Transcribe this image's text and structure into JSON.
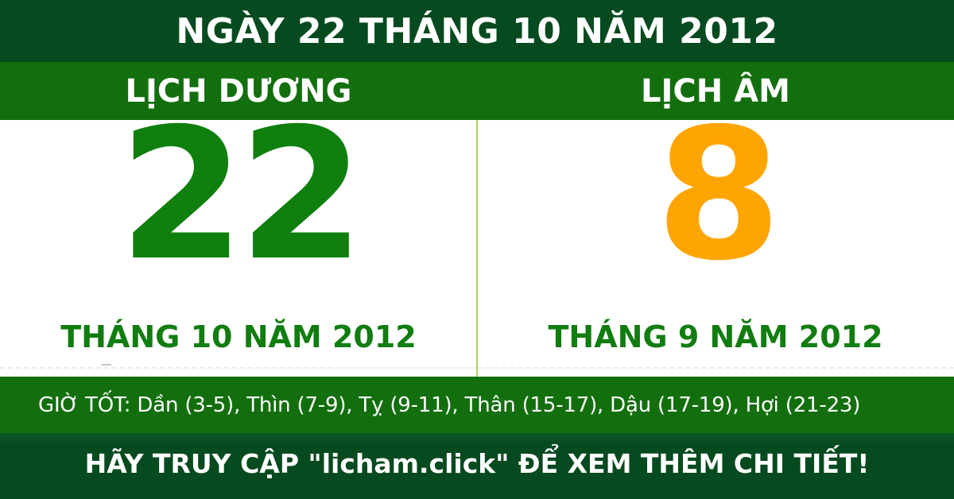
{
  "header": {
    "title": "NGÀY 22 THÁNG 10 NĂM 2012"
  },
  "columns": {
    "solar": {
      "header": "LỊCH DƯƠNG",
      "day": "22",
      "month": "THÁNG 10 NĂM 2012"
    },
    "lunar": {
      "header": "LỊCH ÂM",
      "day": "8",
      "month": "THÁNG 9 NĂM 2012"
    }
  },
  "good_hours": {
    "text": "GIỜ TỐT: Dần (3-5), Thìn (7-9), Tỵ (9-11), Thân (15-17), Dậu (17-19), Hợi (21-23)"
  },
  "footer": {
    "text": "HÃY TRUY CẬP \"licham.click\" ĐỂ XEM THÊM CHI TIẾT!",
    "site": "licham.click"
  },
  "colors": {
    "dark_green": "#064a1f",
    "band_green": "#136f0e",
    "day_green": "#0f7f0e",
    "label_green": "#117d10",
    "lunar_orange": "#ffa502",
    "divider_green": "#a8d66e",
    "text_white": "#ffffff"
  }
}
